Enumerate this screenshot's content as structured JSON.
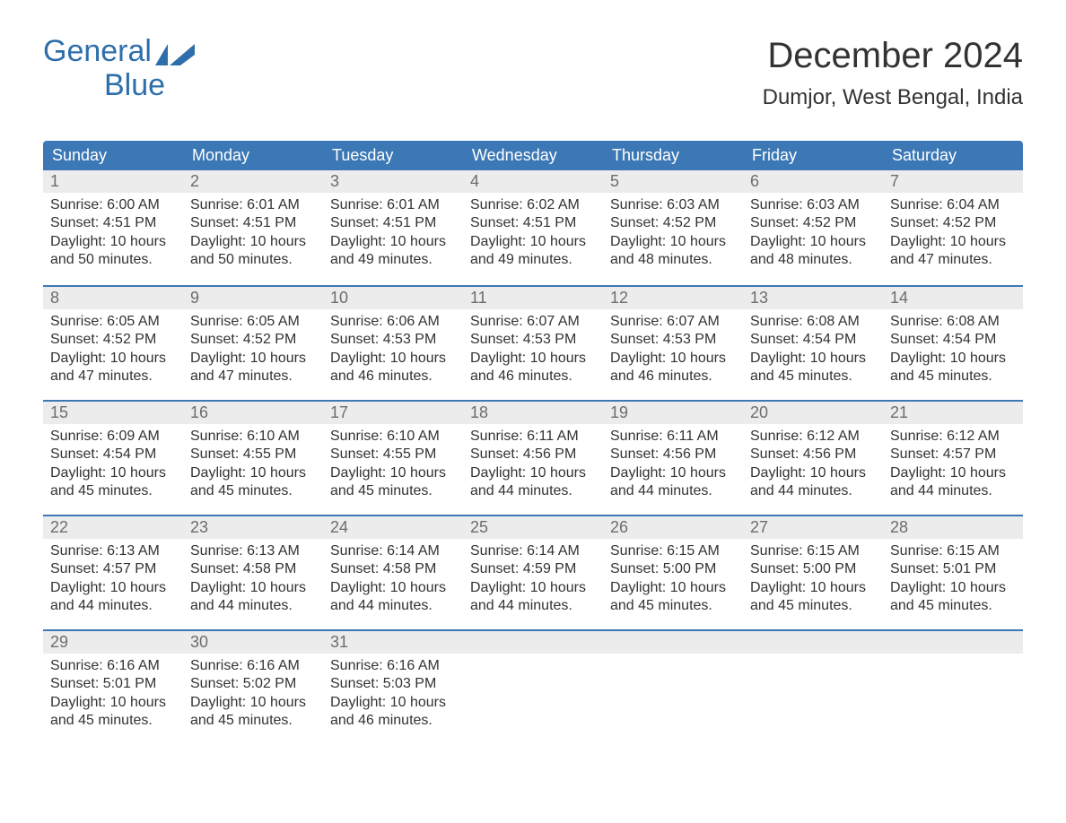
{
  "brand": {
    "name_1": "General",
    "name_2": "Blue",
    "accent_color": "#2e6fab"
  },
  "title": "December 2024",
  "location": "Dumjor, West Bengal, India",
  "colors": {
    "header_bg": "#3b78b5",
    "header_text": "#ffffff",
    "daynum_bg": "#ececec",
    "daynum_text": "#6d6d6d",
    "body_text": "#333333",
    "page_bg": "#ffffff",
    "week_divider": "#3b78b5"
  },
  "typography": {
    "month_title_fontsize": 40,
    "location_fontsize": 24,
    "weekday_fontsize": 18,
    "daynum_fontsize": 18,
    "body_fontsize": 16,
    "font_family": "Arial"
  },
  "weekdays": [
    "Sunday",
    "Monday",
    "Tuesday",
    "Wednesday",
    "Thursday",
    "Friday",
    "Saturday"
  ],
  "weeks": [
    [
      {
        "date": 1,
        "sunrise": "6:00 AM",
        "sunset": "4:51 PM",
        "daylight": "10 hours and 50 minutes."
      },
      {
        "date": 2,
        "sunrise": "6:01 AM",
        "sunset": "4:51 PM",
        "daylight": "10 hours and 50 minutes."
      },
      {
        "date": 3,
        "sunrise": "6:01 AM",
        "sunset": "4:51 PM",
        "daylight": "10 hours and 49 minutes."
      },
      {
        "date": 4,
        "sunrise": "6:02 AM",
        "sunset": "4:51 PM",
        "daylight": "10 hours and 49 minutes."
      },
      {
        "date": 5,
        "sunrise": "6:03 AM",
        "sunset": "4:52 PM",
        "daylight": "10 hours and 48 minutes."
      },
      {
        "date": 6,
        "sunrise": "6:03 AM",
        "sunset": "4:52 PM",
        "daylight": "10 hours and 48 minutes."
      },
      {
        "date": 7,
        "sunrise": "6:04 AM",
        "sunset": "4:52 PM",
        "daylight": "10 hours and 47 minutes."
      }
    ],
    [
      {
        "date": 8,
        "sunrise": "6:05 AM",
        "sunset": "4:52 PM",
        "daylight": "10 hours and 47 minutes."
      },
      {
        "date": 9,
        "sunrise": "6:05 AM",
        "sunset": "4:52 PM",
        "daylight": "10 hours and 47 minutes."
      },
      {
        "date": 10,
        "sunrise": "6:06 AM",
        "sunset": "4:53 PM",
        "daylight": "10 hours and 46 minutes."
      },
      {
        "date": 11,
        "sunrise": "6:07 AM",
        "sunset": "4:53 PM",
        "daylight": "10 hours and 46 minutes."
      },
      {
        "date": 12,
        "sunrise": "6:07 AM",
        "sunset": "4:53 PM",
        "daylight": "10 hours and 46 minutes."
      },
      {
        "date": 13,
        "sunrise": "6:08 AM",
        "sunset": "4:54 PM",
        "daylight": "10 hours and 45 minutes."
      },
      {
        "date": 14,
        "sunrise": "6:08 AM",
        "sunset": "4:54 PM",
        "daylight": "10 hours and 45 minutes."
      }
    ],
    [
      {
        "date": 15,
        "sunrise": "6:09 AM",
        "sunset": "4:54 PM",
        "daylight": "10 hours and 45 minutes."
      },
      {
        "date": 16,
        "sunrise": "6:10 AM",
        "sunset": "4:55 PM",
        "daylight": "10 hours and 45 minutes."
      },
      {
        "date": 17,
        "sunrise": "6:10 AM",
        "sunset": "4:55 PM",
        "daylight": "10 hours and 45 minutes."
      },
      {
        "date": 18,
        "sunrise": "6:11 AM",
        "sunset": "4:56 PM",
        "daylight": "10 hours and 44 minutes."
      },
      {
        "date": 19,
        "sunrise": "6:11 AM",
        "sunset": "4:56 PM",
        "daylight": "10 hours and 44 minutes."
      },
      {
        "date": 20,
        "sunrise": "6:12 AM",
        "sunset": "4:56 PM",
        "daylight": "10 hours and 44 minutes."
      },
      {
        "date": 21,
        "sunrise": "6:12 AM",
        "sunset": "4:57 PM",
        "daylight": "10 hours and 44 minutes."
      }
    ],
    [
      {
        "date": 22,
        "sunrise": "6:13 AM",
        "sunset": "4:57 PM",
        "daylight": "10 hours and 44 minutes."
      },
      {
        "date": 23,
        "sunrise": "6:13 AM",
        "sunset": "4:58 PM",
        "daylight": "10 hours and 44 minutes."
      },
      {
        "date": 24,
        "sunrise": "6:14 AM",
        "sunset": "4:58 PM",
        "daylight": "10 hours and 44 minutes."
      },
      {
        "date": 25,
        "sunrise": "6:14 AM",
        "sunset": "4:59 PM",
        "daylight": "10 hours and 44 minutes."
      },
      {
        "date": 26,
        "sunrise": "6:15 AM",
        "sunset": "5:00 PM",
        "daylight": "10 hours and 45 minutes."
      },
      {
        "date": 27,
        "sunrise": "6:15 AM",
        "sunset": "5:00 PM",
        "daylight": "10 hours and 45 minutes."
      },
      {
        "date": 28,
        "sunrise": "6:15 AM",
        "sunset": "5:01 PM",
        "daylight": "10 hours and 45 minutes."
      }
    ],
    [
      {
        "date": 29,
        "sunrise": "6:16 AM",
        "sunset": "5:01 PM",
        "daylight": "10 hours and 45 minutes."
      },
      {
        "date": 30,
        "sunrise": "6:16 AM",
        "sunset": "5:02 PM",
        "daylight": "10 hours and 45 minutes."
      },
      {
        "date": 31,
        "sunrise": "6:16 AM",
        "sunset": "5:03 PM",
        "daylight": "10 hours and 46 minutes."
      },
      null,
      null,
      null,
      null
    ]
  ],
  "labels": {
    "sunrise_prefix": "Sunrise: ",
    "sunset_prefix": "Sunset: ",
    "daylight_prefix": "Daylight: "
  }
}
